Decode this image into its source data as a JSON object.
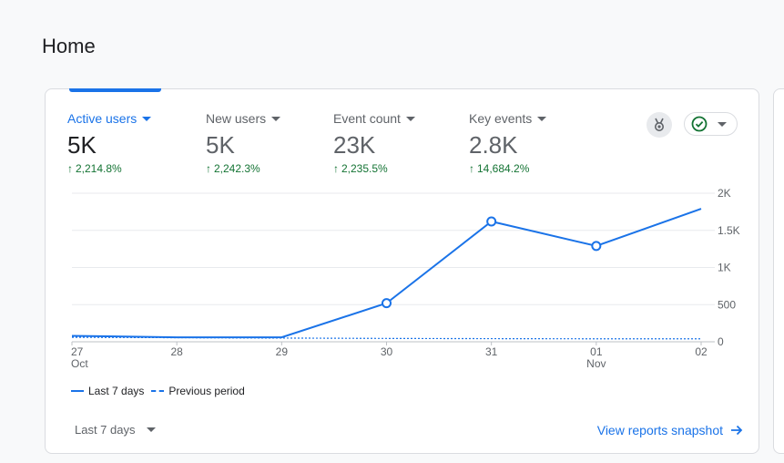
{
  "page": {
    "title": "Home"
  },
  "metrics": [
    {
      "label": "Active users",
      "value": "5K",
      "change": "2,214.8%"
    },
    {
      "label": "New users",
      "value": "5K",
      "change": "2,242.3%"
    },
    {
      "label": "Event count",
      "value": "23K",
      "change": "2,235.5%"
    },
    {
      "label": "Key events",
      "value": "2.8K",
      "change": "14,684.2%"
    }
  ],
  "icons": {
    "insights": "insights-icon",
    "status": "check-circle-icon",
    "dropdown": "chevron-down-icon",
    "arrow_right": "arrow-right-icon",
    "arrow_up": "arrow-up-icon"
  },
  "chart_data": {
    "type": "line",
    "title": "",
    "x": [
      "27",
      "28",
      "29",
      "30",
      "31",
      "01",
      "02"
    ],
    "x_sublabels": [
      "Oct",
      "",
      "",
      "",
      "",
      "Nov",
      ""
    ],
    "series": [
      {
        "name": "Last 7 days",
        "values": [
          80,
          60,
          60,
          520,
          1620,
          1290,
          1790
        ],
        "markers": [
          false,
          false,
          false,
          true,
          true,
          true,
          false
        ]
      },
      {
        "name": "Previous period",
        "values": [
          60,
          55,
          50,
          45,
          42,
          40,
          40
        ],
        "style": "dashed"
      }
    ],
    "y_ticks": [
      "0",
      "500",
      "1K",
      "1.5K",
      "2K"
    ],
    "y_tick_values": [
      0,
      500,
      1000,
      1500,
      2000
    ],
    "ylim": [
      0,
      2000
    ],
    "y_axis_position": "right",
    "color": "#1a73e8"
  },
  "legend": {
    "current": "Last 7 days",
    "previous": "Previous period"
  },
  "footer": {
    "date_range": "Last 7 days",
    "link": "View reports snapshot"
  }
}
